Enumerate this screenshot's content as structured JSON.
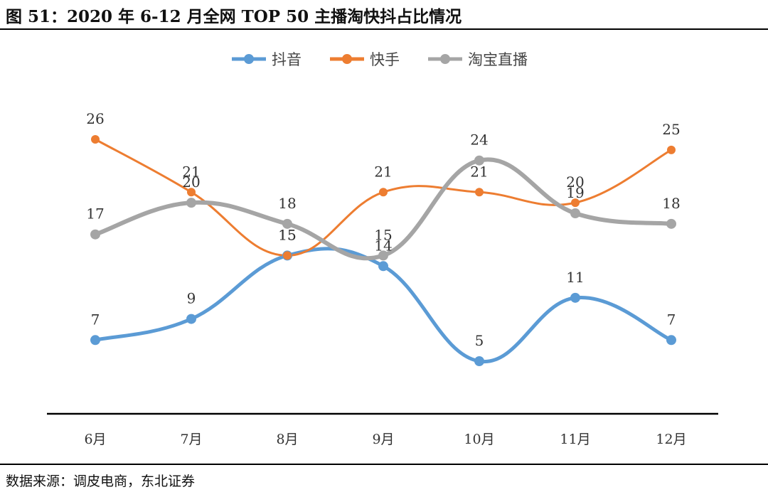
{
  "figure": {
    "title": "图  51：2020 年 6-12 月全网 TOP 50 主播淘快抖占比情况",
    "source": "数据来源：调皮电商，东北证券"
  },
  "chart_data": {
    "type": "line",
    "categories": [
      "6月",
      "7月",
      "8月",
      "9月",
      "10月",
      "11月",
      "12月"
    ],
    "series": [
      {
        "name": "抖音",
        "color": "#5B9BD5",
        "values": [
          7,
          9,
          15,
          14,
          5,
          11,
          7
        ]
      },
      {
        "name": "快手",
        "color": "#ED7D31",
        "values": [
          26,
          21,
          15,
          21,
          21,
          20,
          25
        ]
      },
      {
        "name": "淘宝直播",
        "color": "#A5A5A5",
        "values": [
          17,
          20,
          18,
          15,
          24,
          19,
          18
        ]
      }
    ],
    "data_labels": {
      "抖音": [
        "7",
        "9",
        "15",
        "14",
        "5",
        "11",
        "7"
      ],
      "快手": [
        "26",
        "21",
        "15",
        "21",
        "21",
        "20",
        "25"
      ],
      "淘宝直播": [
        "17",
        "20",
        "18",
        "15",
        "24",
        "19",
        "18"
      ]
    },
    "legend_position": "top-center",
    "smooth": true,
    "markers": true,
    "grid": false,
    "y_axis_visible": false,
    "ylim": [
      0,
      30
    ],
    "xlabel": "",
    "ylabel": ""
  }
}
